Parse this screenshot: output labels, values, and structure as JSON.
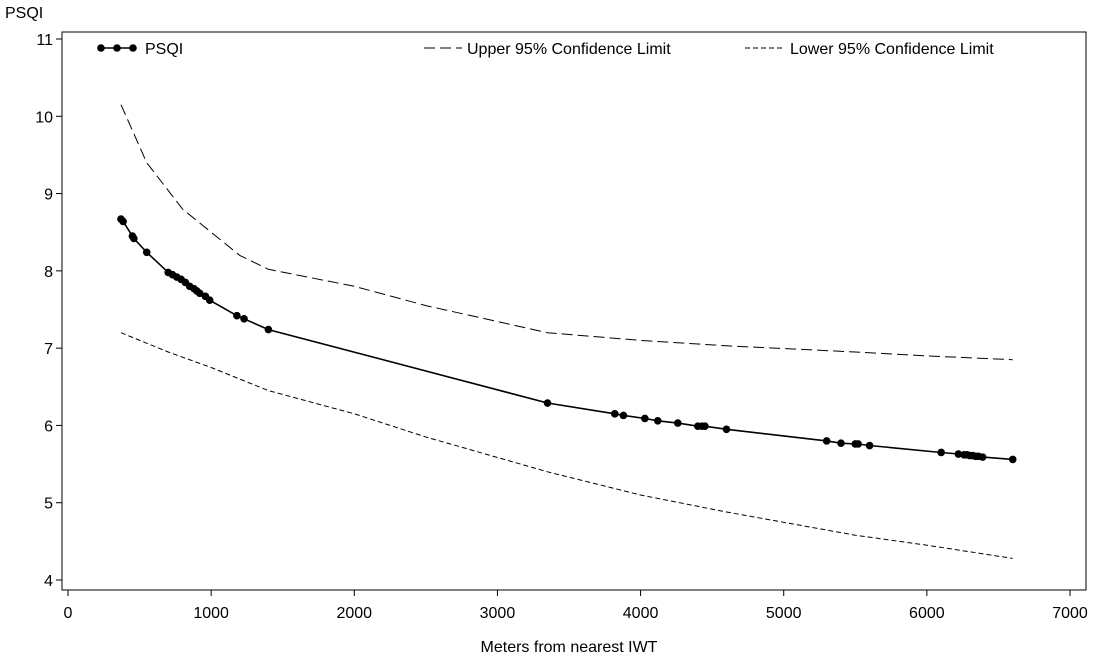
{
  "chart_data": {
    "type": "line",
    "title": "",
    "xlabel": "Meters from nearest IWT",
    "ylabel": "PSQI",
    "xlim": [
      0,
      7000
    ],
    "ylim": [
      4,
      11
    ],
    "xticks": [
      0,
      1000,
      2000,
      3000,
      4000,
      5000,
      6000,
      7000
    ],
    "yticks": [
      4,
      5,
      6,
      7,
      8,
      9,
      10,
      11
    ],
    "grid": false,
    "legend_position": "top",
    "series": [
      {
        "name": "PSQI",
        "style": "solid-markers",
        "color": "#000000",
        "x": [
          370,
          385,
          450,
          460,
          550,
          700,
          730,
          760,
          790,
          820,
          850,
          880,
          900,
          920,
          960,
          990,
          1180,
          1230,
          1400,
          3350,
          3820,
          3880,
          4030,
          4120,
          4260,
          4400,
          4430,
          4450,
          4600,
          5300,
          5400,
          5500,
          5520,
          5600,
          6100,
          6220,
          6260,
          6280,
          6300,
          6320,
          6340,
          6360,
          6390,
          6600
        ],
        "y": [
          8.67,
          8.64,
          8.45,
          8.42,
          8.24,
          7.98,
          7.95,
          7.92,
          7.89,
          7.85,
          7.8,
          7.77,
          7.74,
          7.71,
          7.67,
          7.62,
          7.42,
          7.38,
          7.24,
          6.29,
          6.15,
          6.13,
          6.09,
          6.06,
          6.03,
          5.99,
          5.99,
          5.99,
          5.95,
          5.8,
          5.77,
          5.76,
          5.76,
          5.74,
          5.65,
          5.63,
          5.62,
          5.62,
          5.61,
          5.61,
          5.6,
          5.6,
          5.59,
          5.56
        ]
      },
      {
        "name": "Upper 95% Confidence Limit",
        "style": "long-dash",
        "color": "#000000",
        "x": [
          370,
          550,
          800,
          1000,
          1200,
          1400,
          2000,
          2500,
          3350,
          4000,
          4600,
          5500,
          6000,
          6600
        ],
        "y": [
          10.15,
          9.4,
          8.8,
          8.5,
          8.2,
          8.02,
          7.8,
          7.55,
          7.2,
          7.1,
          7.03,
          6.95,
          6.9,
          6.85
        ]
      },
      {
        "name": "Lower 95% Confidence Limit",
        "style": "short-dash",
        "color": "#000000",
        "x": [
          370,
          700,
          1000,
          1400,
          2000,
          2500,
          3350,
          4000,
          4600,
          5500,
          6000,
          6600
        ],
        "y": [
          7.2,
          6.95,
          6.75,
          6.45,
          6.15,
          5.85,
          5.4,
          5.1,
          4.88,
          4.58,
          4.45,
          4.28
        ]
      }
    ]
  }
}
